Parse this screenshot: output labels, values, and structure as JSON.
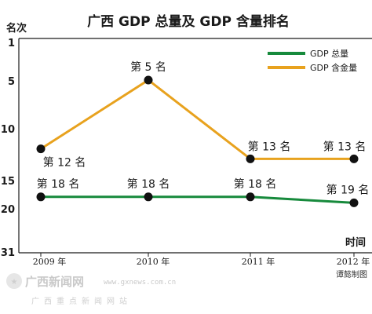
{
  "chart_data": {
    "type": "line",
    "title": "广西 GDP 总量及 GDP 含量排名",
    "ylabel": "名次",
    "xlabel": "时间",
    "categories": [
      "2009 年",
      "2010 年",
      "2011 年",
      "2012 年"
    ],
    "y_ticks": [
      "1",
      "5",
      "10",
      "15",
      "20",
      "31"
    ],
    "y_tick_values": [
      1,
      5,
      10,
      15,
      20,
      31
    ],
    "ylim": [
      1,
      31
    ],
    "y_scale": "piecewise (20 to 31 compressed)",
    "y_inverted": true,
    "grid": false,
    "legend_position": "top-right",
    "series": [
      {
        "name": "GDP 总量",
        "color": "#178a3c",
        "values": [
          18,
          18,
          18,
          19
        ],
        "labels": [
          "第 18 名",
          "第 18 名",
          "第 18 名",
          "第 19 名"
        ]
      },
      {
        "name": "GDP 含金量",
        "color": "#e8a21e",
        "values": [
          12,
          5,
          13,
          13
        ],
        "labels": [
          "第 12 名",
          "第 5 名",
          "第 13 名",
          "第 13 名"
        ]
      }
    ]
  },
  "watermark": {
    "logo": "广西新闻网",
    "url": "www.gxnews.com.cn",
    "sub": "广西重点新闻网站"
  },
  "credit": "谭懿制图"
}
